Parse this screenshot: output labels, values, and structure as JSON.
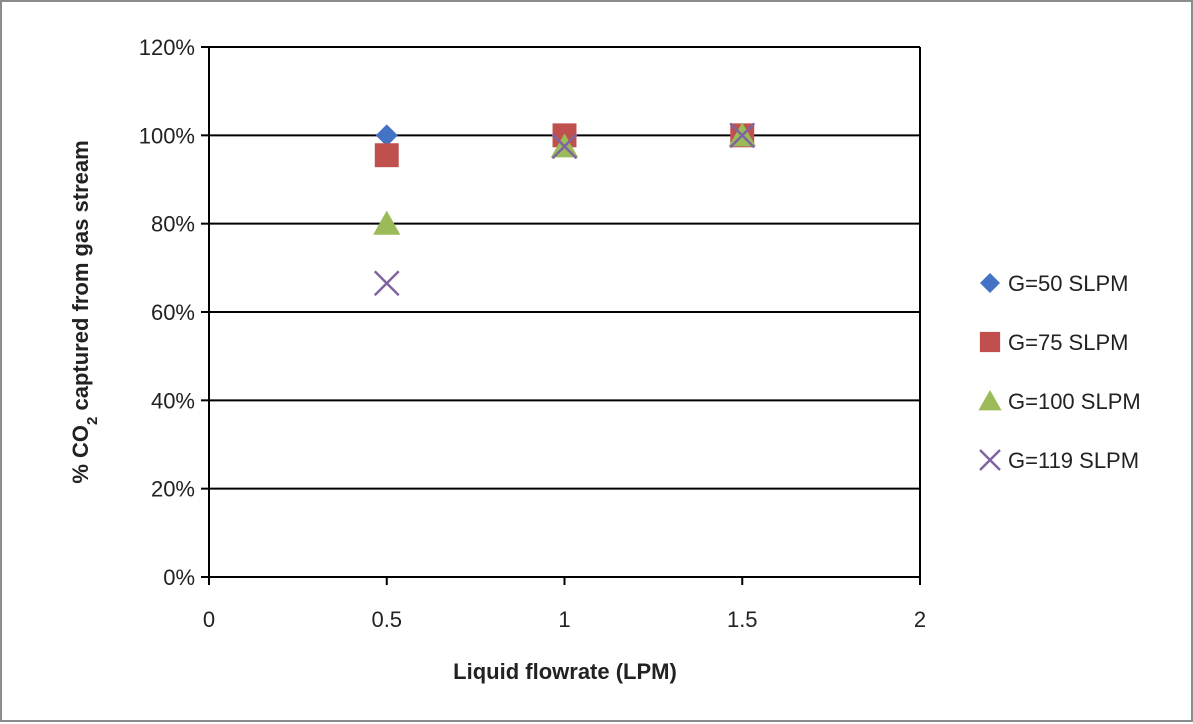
{
  "chart_data": {
    "type": "scatter",
    "title": "",
    "xlabel": "Liquid flowrate (LPM)",
    "ylabel": {
      "before_sub": "% CO",
      "sub": "2",
      "after_sub": " captured from gas stream"
    },
    "xlim": [
      0,
      2
    ],
    "ylim": [
      0,
      1.2
    ],
    "x_ticks": [
      "0",
      "0.5",
      "1",
      "1.5",
      "2"
    ],
    "y_ticks": [
      "0%",
      "20%",
      "40%",
      "60%",
      "80%",
      "100%",
      "120%"
    ],
    "grid": "horizontal",
    "legend_position": "right",
    "series": [
      {
        "name": "G=50 SLPM",
        "marker": "diamond",
        "color": "#4472C4",
        "points": [
          {
            "x": 0.5,
            "y": 1.0
          },
          {
            "x": 1.0,
            "y": 1.0
          },
          {
            "x": 1.5,
            "y": 1.0
          }
        ]
      },
      {
        "name": "G=75 SLPM",
        "marker": "square",
        "color": "#C0504D",
        "points": [
          {
            "x": 0.5,
            "y": 0.955
          },
          {
            "x": 1.0,
            "y": 1.0
          },
          {
            "x": 1.5,
            "y": 1.0
          }
        ]
      },
      {
        "name": "G=100 SLPM",
        "marker": "triangle",
        "color": "#9BBB59",
        "points": [
          {
            "x": 0.5,
            "y": 0.8
          },
          {
            "x": 1.0,
            "y": 0.975
          },
          {
            "x": 1.5,
            "y": 1.0
          }
        ]
      },
      {
        "name": "G=119 SLPM",
        "marker": "x",
        "color": "#8064A2",
        "points": [
          {
            "x": 0.5,
            "y": 0.665
          },
          {
            "x": 1.0,
            "y": 0.975
          },
          {
            "x": 1.5,
            "y": 1.0
          }
        ]
      }
    ]
  }
}
